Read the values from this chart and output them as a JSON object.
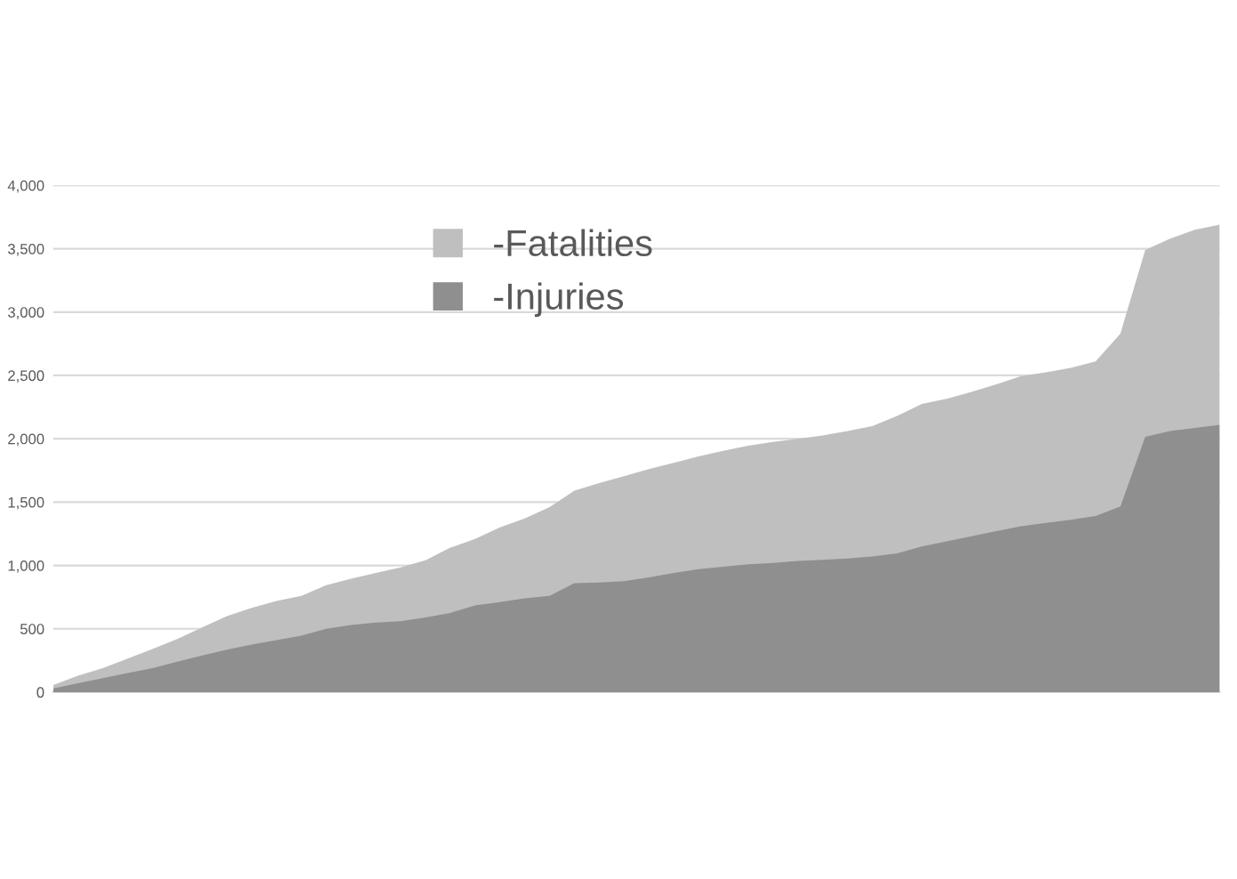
{
  "chart_data": {
    "type": "area",
    "categories": [
      null,
      null,
      null,
      null,
      null,
      null,
      null,
      null,
      null,
      null,
      null,
      null,
      null,
      null,
      null,
      null,
      null,
      null,
      null,
      null,
      null,
      null,
      null,
      null,
      null,
      null,
      null,
      null,
      null,
      null,
      null,
      null,
      null,
      null,
      null,
      null,
      null,
      null,
      null,
      null,
      null,
      null,
      null,
      null,
      null,
      null,
      null,
      null
    ],
    "series": [
      {
        "name": "-Fatalities",
        "color": "#bfbfbf",
        "values": [
          55,
          130,
          190,
          265,
          340,
          420,
          510,
          600,
          665,
          720,
          760,
          845,
          895,
          940,
          985,
          1040,
          1140,
          1210,
          1300,
          1370,
          1460,
          1590,
          1650,
          1705,
          1760,
          1810,
          1860,
          1905,
          1945,
          1975,
          2000,
          2025,
          2060,
          2100,
          2180,
          2275,
          2315,
          2370,
          2430,
          2495,
          2525,
          2560,
          2610,
          2830,
          3490,
          3580,
          3650,
          3690
        ]
      },
      {
        "name": "-Injuries",
        "color": "#8f8f8f",
        "values": [
          30,
          70,
          110,
          150,
          190,
          240,
          290,
          335,
          375,
          410,
          445,
          500,
          530,
          550,
          560,
          590,
          625,
          685,
          710,
          740,
          760,
          860,
          865,
          875,
          905,
          940,
          970,
          990,
          1010,
          1020,
          1035,
          1045,
          1055,
          1070,
          1095,
          1150,
          1190,
          1230,
          1270,
          1310,
          1335,
          1360,
          1390,
          1465,
          2015,
          2060,
          2085,
          2110
        ]
      }
    ],
    "ylim": [
      0,
      4000
    ],
    "yticks": [
      0,
      {
        "value": 500,
        "label": "500"
      },
      {
        "value": 1000,
        "label": "1,000"
      },
      {
        "value": 1500,
        "label": "1,500"
      },
      {
        "value": 2000,
        "label": "2,000"
      },
      {
        "value": 2500,
        "label": "2,500"
      },
      {
        "value": 3000,
        "label": "3,000"
      },
      {
        "value": 3500,
        "label": "3,500"
      },
      {
        "value": 4000,
        "label": "4,000"
      }
    ],
    "grid": "y",
    "legend": "top",
    "tick_labels": "y"
  }
}
